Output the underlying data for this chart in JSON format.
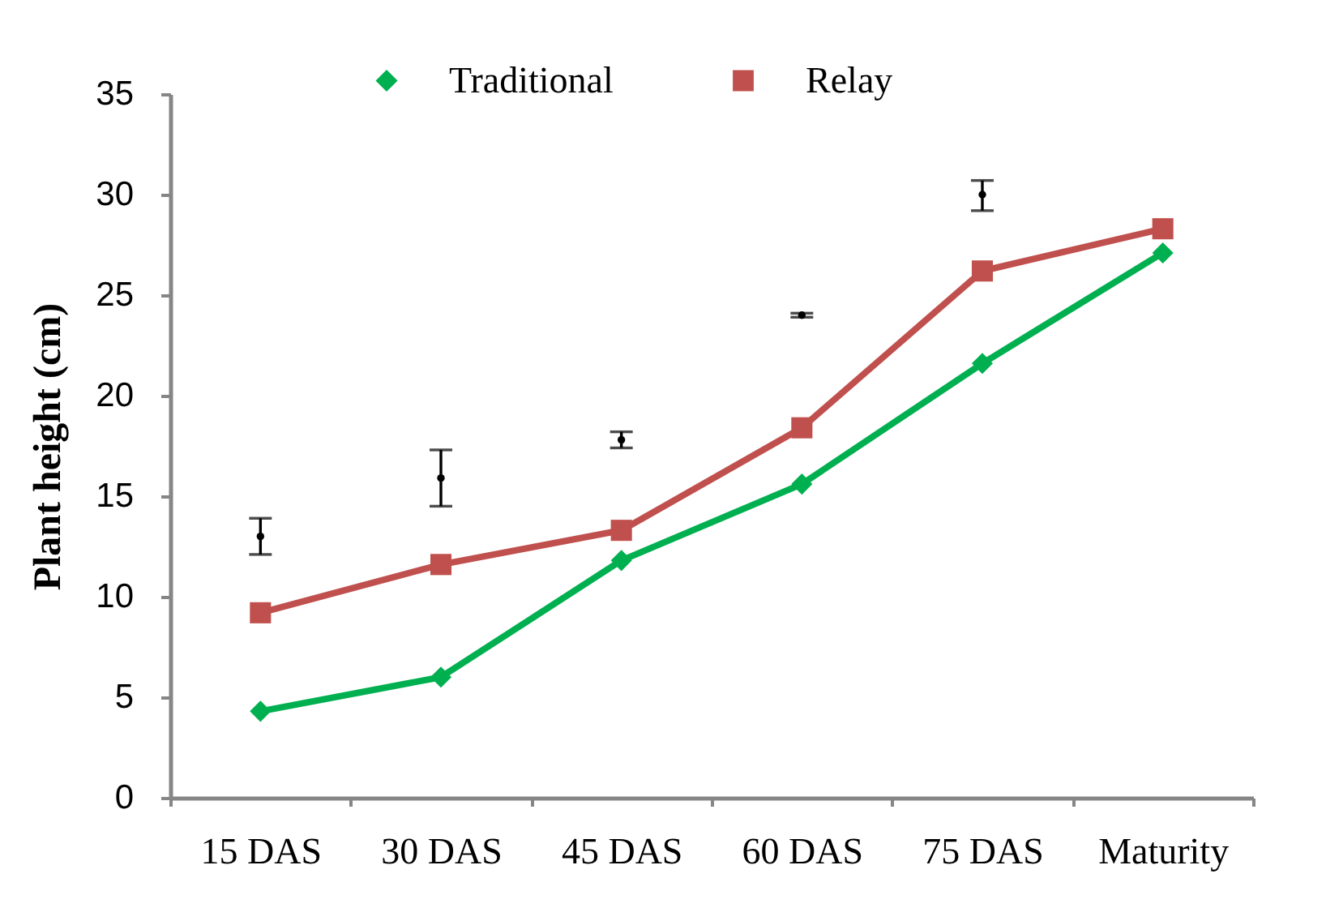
{
  "chart_data": {
    "type": "line",
    "ylabel": "Plant height (cm)",
    "categories": [
      "15 DAS",
      "30 DAS",
      "45 DAS",
      "60 DAS",
      "75 DAS",
      "Maturity"
    ],
    "series": [
      {
        "name": "Traditional",
        "color": "#00b050",
        "marker": "diamond",
        "values": [
          4.3,
          6.0,
          11.8,
          15.6,
          21.6,
          27.1
        ]
      },
      {
        "name": "Relay",
        "color": "#c0504d",
        "marker": "square",
        "values": [
          9.2,
          11.6,
          13.3,
          18.4,
          26.2,
          28.3
        ]
      },
      {
        "type": "scatter",
        "color": "#000000",
        "marker": "circle",
        "values": [
          13.0,
          15.9,
          17.8,
          24.0,
          30.0,
          null
        ],
        "errors": [
          [
            12.1,
            13.9
          ],
          [
            14.5,
            17.3
          ],
          [
            17.4,
            18.2
          ],
          [
            23.9,
            24.1
          ],
          [
            29.2,
            30.7
          ],
          null
        ]
      }
    ],
    "ylim": [
      0,
      35
    ],
    "yticks": [
      0,
      5,
      10,
      15,
      20,
      25,
      30,
      35
    ],
    "grid": false,
    "legend": "top",
    "line_style": "solid"
  }
}
